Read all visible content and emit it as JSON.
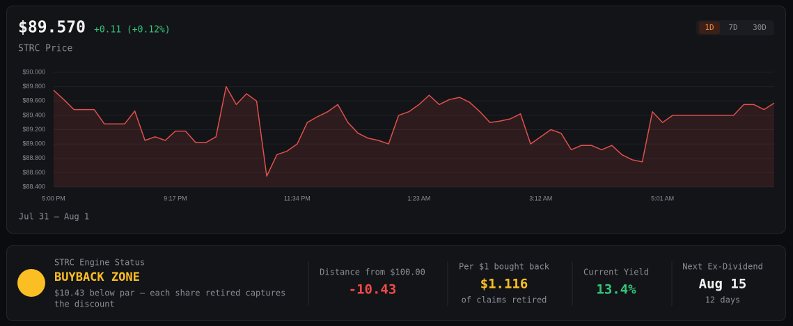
{
  "header": {
    "price": "$89.570",
    "change": "+0.11 (+0.12%)",
    "subtitle": "STRC Price"
  },
  "timeframes": [
    "1D",
    "7D",
    "30D"
  ],
  "date_range": "Jul 31 – Aug 1",
  "chart_data": {
    "type": "line",
    "categories": [
      "5:00 PM",
      null,
      null,
      null,
      null,
      null,
      null,
      null,
      null,
      null,
      null,
      null,
      "9:17 PM",
      null,
      null,
      null,
      null,
      null,
      null,
      null,
      null,
      null,
      null,
      null,
      "11:34 PM",
      null,
      null,
      null,
      null,
      null,
      null,
      null,
      null,
      null,
      null,
      null,
      "1:23 AM",
      null,
      null,
      null,
      null,
      null,
      null,
      null,
      null,
      null,
      null,
      null,
      "3:12 AM",
      null,
      null,
      null,
      null,
      null,
      null,
      null,
      null,
      null,
      null,
      null,
      "5:01 AM",
      null,
      null,
      null,
      null,
      null,
      null,
      null,
      null,
      null,
      null,
      null
    ],
    "series": [
      {
        "name": "STRC Price",
        "color": "#e0504a",
        "values": [
          89.75,
          89.62,
          89.48,
          89.48,
          89.48,
          89.28,
          89.28,
          89.28,
          89.46,
          89.05,
          89.1,
          89.05,
          89.18,
          89.18,
          89.02,
          89.02,
          89.1,
          89.8,
          89.55,
          89.7,
          89.6,
          88.55,
          88.85,
          88.9,
          89.0,
          89.3,
          89.38,
          89.45,
          89.55,
          89.3,
          89.15,
          89.08,
          89.05,
          89.0,
          89.4,
          89.45,
          89.55,
          89.68,
          89.55,
          89.62,
          89.65,
          89.58,
          89.45,
          89.3,
          89.32,
          89.35,
          89.42,
          89.0,
          89.1,
          89.2,
          89.15,
          88.92,
          88.98,
          88.98,
          88.92,
          88.98,
          88.85,
          88.78,
          88.75,
          89.45,
          89.3,
          89.4,
          89.4,
          89.4,
          89.4,
          89.4,
          89.4,
          89.4,
          89.55,
          89.55,
          89.48,
          89.57
        ]
      }
    ],
    "ylim": [
      88.4,
      90.0
    ],
    "yticks": [
      {
        "value": 88.4,
        "label": "$88.400"
      },
      {
        "value": 88.6,
        "label": "$88.600"
      },
      {
        "value": 88.8,
        "label": "$88.800"
      },
      {
        "value": 89.0,
        "label": "$89.000"
      },
      {
        "value": 89.2,
        "label": "$89.200"
      },
      {
        "value": 89.4,
        "label": "$89.400"
      },
      {
        "value": 89.6,
        "label": "$89.600"
      },
      {
        "value": 89.8,
        "label": "$89.800"
      },
      {
        "value": 90.0,
        "label": "$90.000"
      }
    ],
    "grid": true
  },
  "status": {
    "label": "STRC Engine Status",
    "zone": "BUYBACK ZONE",
    "description": [
      "$10.43 below par — each share retired captures",
      "the discount"
    ],
    "stats": [
      {
        "label": "Distance from $100.00",
        "value": "-10.43"
      },
      {
        "label": "Per $1 bought back",
        "value": "$1.116",
        "note": "of claims retired"
      },
      {
        "label": "Current Yield",
        "value": "13.4%"
      },
      {
        "label": "Next Ex-Dividend",
        "value": "Aug 15",
        "note": "12 days"
      }
    ]
  }
}
